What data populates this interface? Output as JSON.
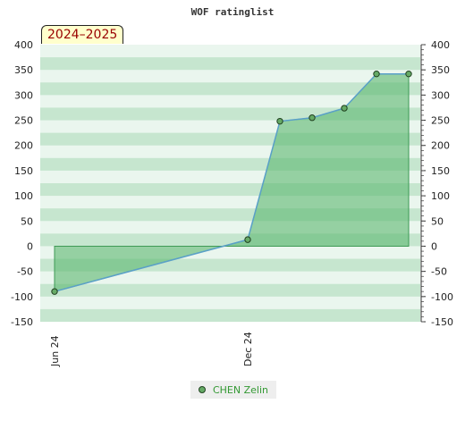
{
  "chart_data": {
    "type": "area",
    "title": "WOF ratinglist",
    "badge": "2024–2025",
    "x_tick_labels": [
      "Jun 24",
      "Dec 24"
    ],
    "y_ticks": [
      400,
      350,
      300,
      250,
      200,
      150,
      100,
      50,
      0,
      -50,
      -100,
      -150
    ],
    "ylim": [
      -150,
      400
    ],
    "grid": "horizontal bands",
    "legend_placement": "bottom-center",
    "colors": {
      "line": "#5aa0c8",
      "fill": "#5cb870",
      "marker": "#66aa66",
      "band_dark": "#c6e6cf",
      "band_light": "#eaf6ee"
    },
    "series": [
      {
        "name": "CHEN Zelin",
        "points": [
          {
            "x": "2024-06",
            "y": -90
          },
          {
            "x": "2024-12",
            "y": 13
          },
          {
            "x": "2025-01",
            "y": 248
          },
          {
            "x": "2025-02",
            "y": 255
          },
          {
            "x": "2025-03",
            "y": 274
          },
          {
            "x": "2025-04",
            "y": 342
          },
          {
            "x": "2025-05",
            "y": 342
          }
        ]
      }
    ]
  }
}
